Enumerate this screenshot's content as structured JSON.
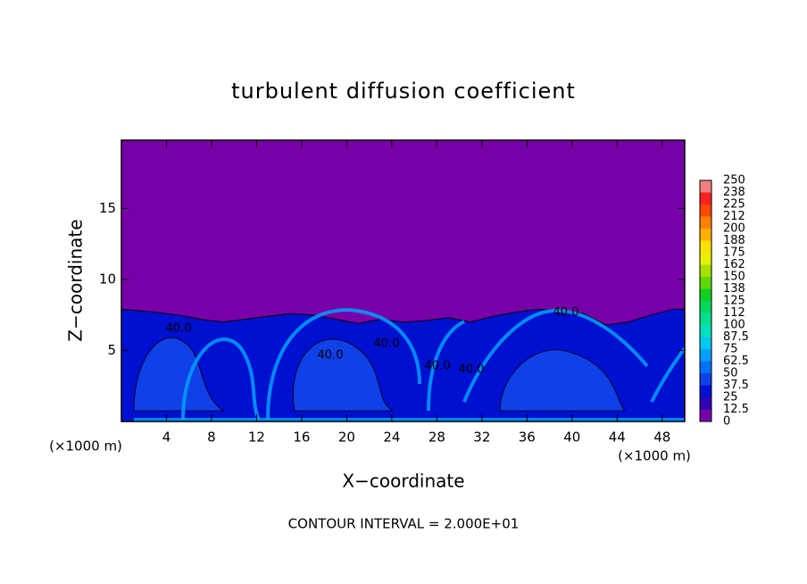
{
  "chart_data": {
    "type": "contour",
    "title": "turbulent diffusion coefficient",
    "xlabel": "X−coordinate",
    "ylabel": "Z−coordinate",
    "x_unit": "(×1000 m)",
    "y_unit": "(×1000 m)",
    "footnote": "CONTOUR INTERVAL = 2.000E+01",
    "xlim": [
      0,
      50
    ],
    "ylim": [
      0,
      19.8
    ],
    "xticks": [
      4,
      8,
      12,
      16,
      20,
      24,
      28,
      32,
      36,
      40,
      44,
      48
    ],
    "yticks": [
      5,
      10,
      15
    ],
    "contour_labels": [
      "40.0",
      "40.0",
      "40.0",
      "40.0",
      "40.0",
      "40.0"
    ],
    "colorbar": {
      "levels": [
        0,
        12.5,
        25,
        37.5,
        50,
        62.5,
        75,
        87.5,
        100,
        112,
        125,
        138,
        150,
        162,
        175,
        188,
        200,
        212,
        225,
        238,
        250
      ],
      "colors": [
        "#7800a8",
        "#3000b8",
        "#0010d0",
        "#1040e8",
        "#0070ff",
        "#00a0ff",
        "#00c8f0",
        "#00e0c0",
        "#00e090",
        "#00d860",
        "#10d020",
        "#60d800",
        "#a8e000",
        "#e8f000",
        "#ffe000",
        "#ffb000",
        "#ff8000",
        "#ff4800",
        "#ff2020",
        "#f08080"
      ]
    }
  }
}
